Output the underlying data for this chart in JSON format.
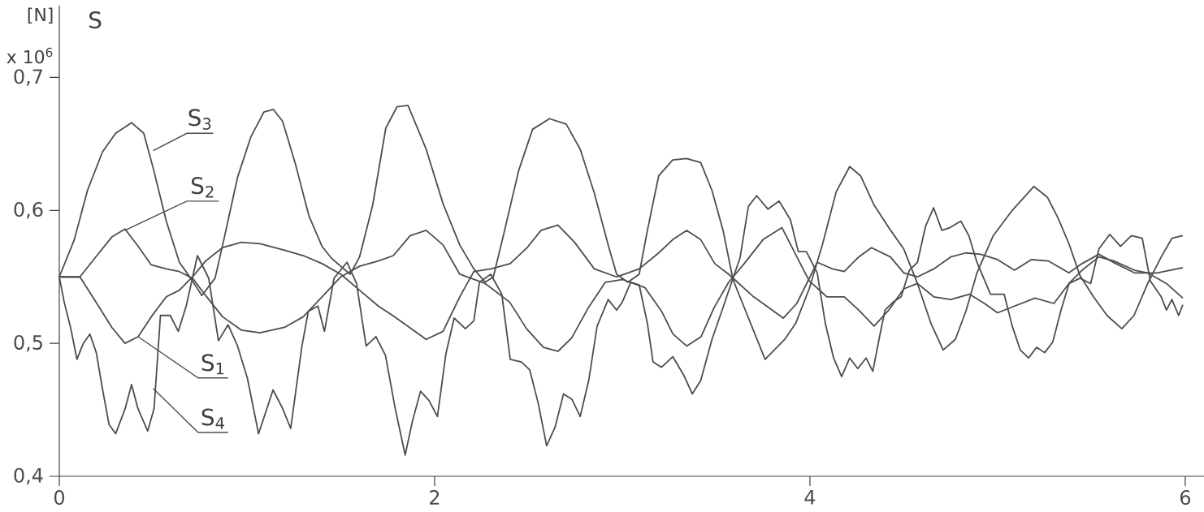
{
  "chart_data": {
    "type": "line",
    "ylabel": "S",
    "annotations": [
      "[N]",
      "x 10$^{6}$"
    ],
    "xlim": [
      0,
      6.1
    ],
    "ylim": [
      0.4,
      0.754
    ],
    "xticks": [
      0,
      2,
      4,
      6
    ],
    "yticks": [
      {
        "value": 0.4,
        "label": "0,4"
      },
      {
        "value": 0.5,
        "label": "0,5"
      },
      {
        "value": 0.6,
        "label": "0,6"
      },
      {
        "value": 0.7,
        "label": "0,7"
      }
    ],
    "series": [
      {
        "name": "S$_{1}$",
        "color": "#4d4d4d",
        "x": [
          0,
          0.11,
          0.2,
          0.28,
          0.35,
          0.42,
          0.49,
          0.57,
          0.64,
          0.71,
          0.78,
          0.87,
          0.97,
          1.07,
          1.2,
          1.3,
          1.4,
          1.5,
          1.6,
          1.7,
          1.776,
          1.866,
          1.955,
          2.045,
          2.134,
          2.209,
          2.3,
          2.403,
          2.493,
          2.567,
          2.657,
          2.746,
          2.851,
          2.97,
          3.09,
          3.194,
          3.269,
          3.343,
          3.418,
          3.493,
          3.567,
          3.7,
          3.858,
          3.93,
          4.039,
          4.12,
          4.183,
          4.26,
          4.328,
          4.429,
          4.5,
          4.573,
          4.66,
          4.75,
          4.83,
          4.91,
          5.0,
          5.09,
          5.18,
          5.27,
          5.38,
          5.45,
          5.54,
          5.63,
          5.73,
          5.85,
          5.987
        ],
        "values": [
          0.55,
          0.55,
          0.53,
          0.512,
          0.5,
          0.505,
          0.52,
          0.535,
          0.54,
          0.55,
          0.562,
          0.572,
          0.576,
          0.575,
          0.57,
          0.566,
          0.56,
          0.552,
          0.54,
          0.528,
          0.521,
          0.512,
          0.503,
          0.509,
          0.535,
          0.554,
          0.556,
          0.56,
          0.572,
          0.585,
          0.589,
          0.576,
          0.556,
          0.55,
          0.556,
          0.568,
          0.578,
          0.585,
          0.578,
          0.56,
          0.552,
          0.535,
          0.519,
          0.53,
          0.561,
          0.556,
          0.554,
          0.565,
          0.572,
          0.565,
          0.553,
          0.55,
          0.556,
          0.565,
          0.568,
          0.567,
          0.563,
          0.555,
          0.563,
          0.562,
          0.553,
          0.56,
          0.567,
          0.56,
          0.553,
          0.553,
          0.557
        ]
      },
      {
        "name": "S$_{2}$",
        "color": "#4d4d4d",
        "x": [
          0,
          0.11,
          0.2,
          0.28,
          0.35,
          0.42,
          0.49,
          0.57,
          0.64,
          0.71,
          0.78,
          0.87,
          0.97,
          1.07,
          1.2,
          1.3,
          1.4,
          1.5,
          1.6,
          1.7,
          1.78,
          1.87,
          1.955,
          2.045,
          2.134,
          2.27,
          2.4,
          2.49,
          2.58,
          2.657,
          2.73,
          2.82,
          2.91,
          3.0,
          3.12,
          3.21,
          3.27,
          3.343,
          3.42,
          3.49,
          3.567,
          3.65,
          3.75,
          3.851,
          3.996,
          4.09,
          4.183,
          4.26,
          4.342,
          4.42,
          4.5,
          4.573,
          4.66,
          4.75,
          4.85,
          4.93,
          5.0,
          5.09,
          5.2,
          5.3,
          5.38,
          5.45,
          5.54,
          5.62,
          5.73,
          5.8,
          5.9,
          5.987
        ],
        "values": [
          0.55,
          0.55,
          0.566,
          0.58,
          0.586,
          0.573,
          0.559,
          0.556,
          0.554,
          0.549,
          0.536,
          0.52,
          0.51,
          0.508,
          0.512,
          0.52,
          0.535,
          0.55,
          0.558,
          0.562,
          0.566,
          0.581,
          0.585,
          0.574,
          0.552,
          0.545,
          0.531,
          0.511,
          0.497,
          0.494,
          0.504,
          0.527,
          0.546,
          0.548,
          0.542,
          0.524,
          0.507,
          0.498,
          0.505,
          0.527,
          0.546,
          0.56,
          0.578,
          0.587,
          0.547,
          0.535,
          0.535,
          0.525,
          0.513,
          0.525,
          0.541,
          0.545,
          0.535,
          0.533,
          0.537,
          0.53,
          0.523,
          0.528,
          0.534,
          0.53,
          0.545,
          0.555,
          0.565,
          0.562,
          0.555,
          0.553,
          0.545,
          0.534
        ]
      },
      {
        "name": "S$_{3}$",
        "color": "#4d4d4d",
        "x": [
          0,
          0.08,
          0.15,
          0.23,
          0.3,
          0.385,
          0.45,
          0.5,
          0.57,
          0.64,
          0.7,
          0.76,
          0.83,
          0.88,
          0.95,
          1.02,
          1.09,
          1.14,
          1.19,
          1.26,
          1.33,
          1.4,
          1.45,
          1.5,
          1.55,
          1.6,
          1.67,
          1.74,
          1.8,
          1.858,
          1.955,
          2.045,
          2.134,
          2.209,
          2.269,
          2.313,
          2.373,
          2.448,
          2.522,
          2.612,
          2.701,
          2.776,
          2.851,
          2.925,
          2.97,
          3.03,
          3.09,
          3.134,
          3.194,
          3.269,
          3.343,
          3.418,
          3.478,
          3.537,
          3.59,
          3.761,
          3.866,
          3.924,
          3.996,
          4.068,
          4.14,
          4.212,
          4.27,
          4.342,
          4.43,
          4.5,
          4.573,
          4.645,
          4.71,
          4.775,
          4.833,
          4.89,
          4.977,
          5.078,
          5.193,
          5.265,
          5.323,
          5.38,
          5.439,
          5.511,
          5.583,
          5.662,
          5.727,
          5.8,
          5.872,
          5.929,
          5.987
        ],
        "values": [
          0.55,
          0.578,
          0.615,
          0.644,
          0.658,
          0.666,
          0.658,
          0.632,
          0.592,
          0.561,
          0.549,
          0.536,
          0.549,
          0.58,
          0.625,
          0.655,
          0.674,
          0.676,
          0.667,
          0.634,
          0.596,
          0.573,
          0.564,
          0.558,
          0.552,
          0.565,
          0.604,
          0.662,
          0.678,
          0.679,
          0.646,
          0.605,
          0.574,
          0.556,
          0.546,
          0.55,
          0.585,
          0.63,
          0.661,
          0.669,
          0.665,
          0.646,
          0.613,
          0.574,
          0.552,
          0.546,
          0.552,
          0.585,
          0.626,
          0.638,
          0.639,
          0.636,
          0.615,
          0.585,
          0.548,
          0.488,
          0.503,
          0.515,
          0.541,
          0.575,
          0.614,
          0.633,
          0.626,
          0.604,
          0.585,
          0.571,
          0.545,
          0.515,
          0.495,
          0.503,
          0.525,
          0.553,
          0.581,
          0.6,
          0.618,
          0.61,
          0.594,
          0.575,
          0.551,
          0.535,
          0.521,
          0.511,
          0.521,
          0.545,
          0.565,
          0.579,
          0.581
        ]
      },
      {
        "name": "S$_{4}$",
        "color": "#4d4d4d",
        "x": [
          0,
          0.026,
          0.06,
          0.094,
          0.128,
          0.163,
          0.197,
          0.231,
          0.265,
          0.3,
          0.351,
          0.385,
          0.419,
          0.471,
          0.505,
          0.539,
          0.591,
          0.634,
          0.676,
          0.736,
          0.796,
          0.848,
          0.899,
          0.95,
          1.002,
          1.062,
          1.139,
          1.19,
          1.233,
          1.293,
          1.327,
          1.378,
          1.413,
          1.464,
          1.533,
          1.584,
          1.635,
          1.687,
          1.738,
          1.79,
          1.843,
          1.881,
          1.925,
          1.97,
          2.015,
          2.06,
          2.104,
          2.164,
          2.209,
          2.239,
          2.299,
          2.358,
          2.403,
          2.463,
          2.507,
          2.552,
          2.597,
          2.642,
          2.687,
          2.731,
          2.776,
          2.821,
          2.866,
          2.925,
          2.97,
          3.0,
          3.045,
          3.09,
          3.134,
          3.164,
          3.209,
          3.269,
          3.328,
          3.373,
          3.418,
          3.478,
          3.537,
          3.597,
          3.627,
          3.672,
          3.716,
          3.776,
          3.836,
          3.896,
          3.938,
          3.981,
          4.039,
          4.082,
          4.126,
          4.169,
          4.212,
          4.255,
          4.299,
          4.335,
          4.371,
          4.4,
          4.443,
          4.486,
          4.53,
          4.573,
          4.616,
          4.659,
          4.703,
          4.746,
          4.804,
          4.847,
          4.89,
          4.962,
          5.035,
          5.078,
          5.121,
          5.165,
          5.208,
          5.251,
          5.294,
          5.338,
          5.381,
          5.439,
          5.496,
          5.54,
          5.598,
          5.655,
          5.713,
          5.771,
          5.814,
          5.872,
          5.9,
          5.929,
          5.965,
          5.987
        ],
        "values": [
          0.55,
          0.531,
          0.512,
          0.488,
          0.5,
          0.507,
          0.493,
          0.465,
          0.439,
          0.432,
          0.451,
          0.469,
          0.451,
          0.434,
          0.451,
          0.521,
          0.521,
          0.509,
          0.528,
          0.566,
          0.549,
          0.502,
          0.514,
          0.498,
          0.474,
          0.432,
          0.465,
          0.451,
          0.436,
          0.498,
          0.524,
          0.528,
          0.509,
          0.549,
          0.561,
          0.545,
          0.498,
          0.505,
          0.491,
          0.451,
          0.416,
          0.441,
          0.464,
          0.457,
          0.445,
          0.492,
          0.519,
          0.511,
          0.517,
          0.546,
          0.552,
          0.537,
          0.488,
          0.486,
          0.48,
          0.455,
          0.423,
          0.437,
          0.462,
          0.458,
          0.445,
          0.472,
          0.513,
          0.533,
          0.525,
          0.531,
          0.546,
          0.544,
          0.515,
          0.486,
          0.482,
          0.49,
          0.476,
          0.462,
          0.472,
          0.503,
          0.527,
          0.552,
          0.564,
          0.603,
          0.611,
          0.601,
          0.607,
          0.593,
          0.569,
          0.569,
          0.553,
          0.515,
          0.489,
          0.475,
          0.489,
          0.481,
          0.489,
          0.479,
          0.505,
          0.525,
          0.531,
          0.535,
          0.555,
          0.561,
          0.588,
          0.602,
          0.585,
          0.587,
          0.592,
          0.581,
          0.561,
          0.537,
          0.537,
          0.513,
          0.495,
          0.489,
          0.497,
          0.493,
          0.501,
          0.525,
          0.545,
          0.549,
          0.545,
          0.571,
          0.582,
          0.573,
          0.581,
          0.579,
          0.547,
          0.535,
          0.525,
          0.533,
          0.521,
          0.529
        ]
      }
    ]
  }
}
